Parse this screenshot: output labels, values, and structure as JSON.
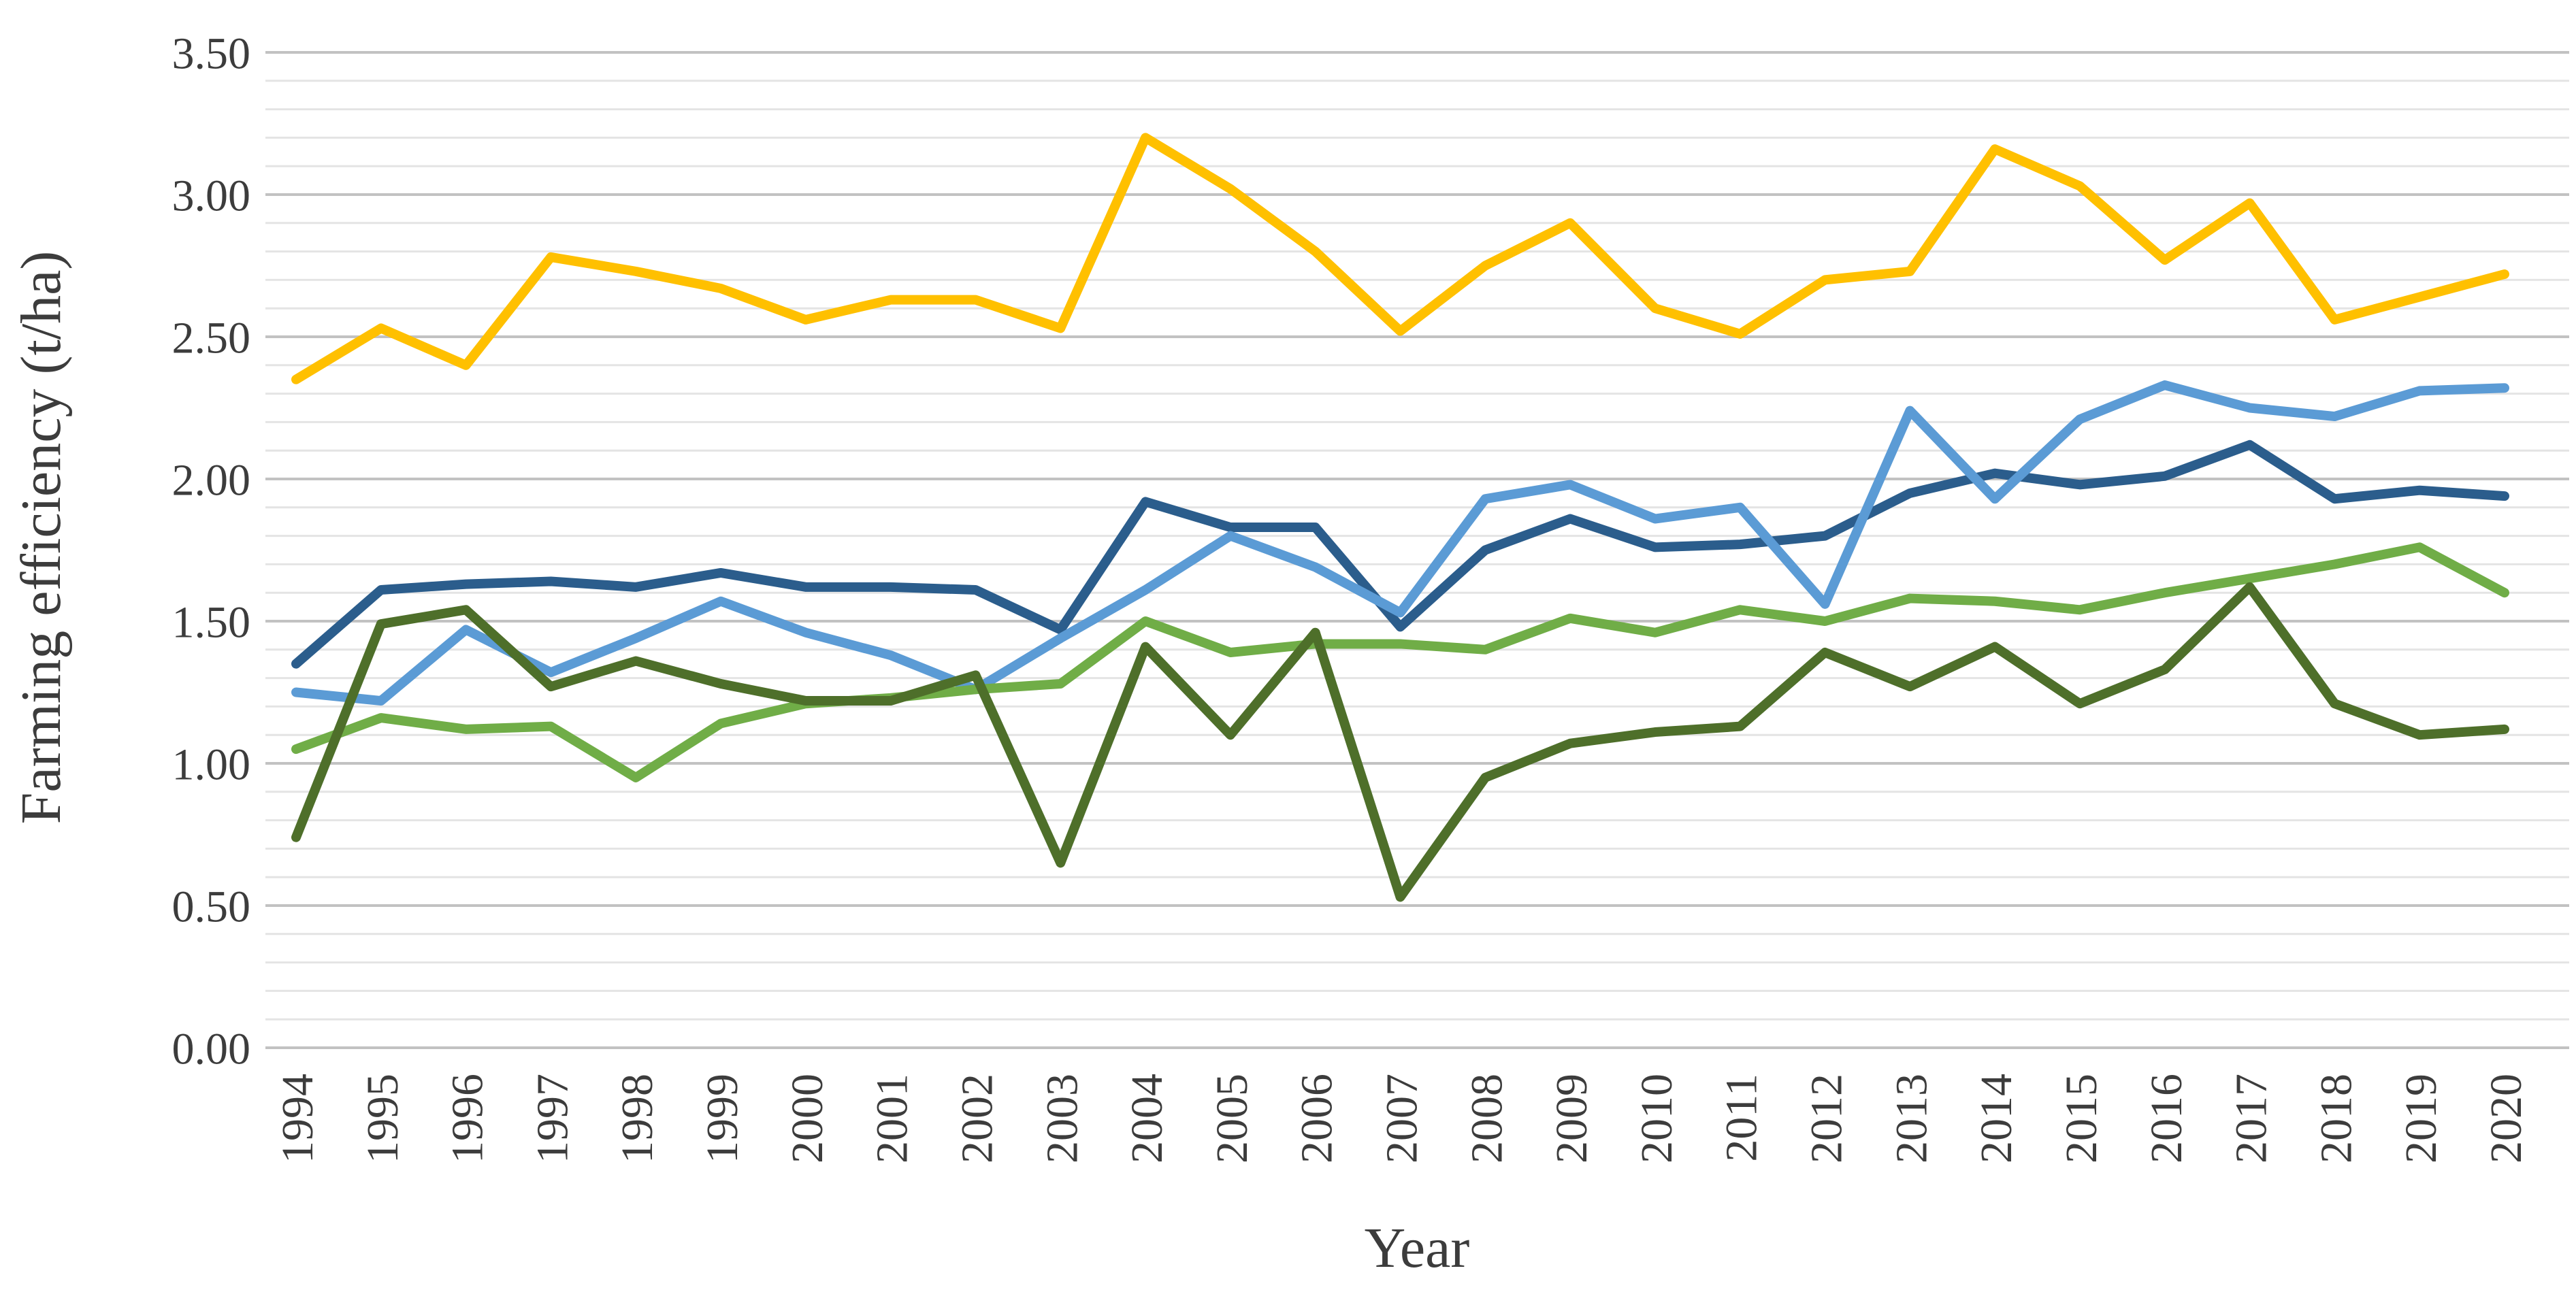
{
  "chart_data": {
    "type": "line",
    "title": "",
    "xlabel": "Year",
    "ylabel": "Farming efficiency (t/ha)",
    "x": [
      1994,
      1995,
      1996,
      1997,
      1998,
      1999,
      2000,
      2001,
      2002,
      2003,
      2004,
      2005,
      2006,
      2007,
      2008,
      2009,
      2010,
      2011,
      2012,
      2013,
      2014,
      2015,
      2016,
      2017,
      2018,
      2019,
      2020
    ],
    "x_tick_labels": [
      "1994",
      "1995",
      "1996",
      "1997",
      "1998",
      "1999",
      "2000",
      "2001",
      "2002",
      "2003",
      "2004",
      "2005",
      "2006",
      "2007",
      "2008",
      "2009",
      "2010",
      "2011",
      "2012",
      "2013",
      "2014",
      "2015",
      "2016",
      "2017",
      "2018",
      "2019",
      "2020"
    ],
    "ylim": [
      0,
      3.5
    ],
    "y_major_step": 0.5,
    "y_minor_step": 0.1,
    "y_tick_labels": [
      "0.00",
      "0.50",
      "1.00",
      "1.50",
      "2.00",
      "2.50",
      "3.00",
      "3.50"
    ],
    "grid": "horizontal, minor and major, no vertical gridlines",
    "legend": "none",
    "series": [
      {
        "name": "gold",
        "color": "#FFC000",
        "values": [
          2.35,
          2.53,
          2.4,
          2.78,
          2.73,
          2.67,
          2.56,
          2.63,
          2.63,
          2.53,
          3.2,
          3.02,
          2.8,
          2.52,
          2.75,
          2.9,
          2.6,
          2.51,
          2.7,
          2.73,
          3.16,
          3.03,
          2.77,
          2.97,
          2.56,
          2.64,
          2.72
        ]
      },
      {
        "name": "dark-blue",
        "color": "#2B5D8C",
        "values": [
          1.35,
          1.61,
          1.63,
          1.64,
          1.62,
          1.67,
          1.62,
          1.62,
          1.61,
          1.47,
          1.92,
          1.83,
          1.83,
          1.48,
          1.75,
          1.86,
          1.76,
          1.77,
          1.8,
          1.95,
          2.02,
          1.98,
          2.01,
          2.12,
          1.93,
          1.96,
          1.94
        ]
      },
      {
        "name": "light-blue",
        "color": "#5B9BD5",
        "values": [
          1.25,
          1.22,
          1.47,
          1.32,
          1.44,
          1.57,
          1.46,
          1.38,
          1.26,
          1.44,
          1.61,
          1.8,
          1.69,
          1.53,
          1.93,
          1.98,
          1.86,
          1.9,
          1.56,
          2.24,
          1.93,
          2.21,
          2.33,
          2.25,
          2.22,
          2.31,
          2.32
        ]
      },
      {
        "name": "light-green",
        "color": "#70AD47",
        "values": [
          1.05,
          1.16,
          1.12,
          1.13,
          0.95,
          1.14,
          1.21,
          1.23,
          1.26,
          1.28,
          1.5,
          1.39,
          1.42,
          1.42,
          1.4,
          1.51,
          1.46,
          1.54,
          1.5,
          1.58,
          1.57,
          1.54,
          1.6,
          1.65,
          1.7,
          1.76,
          1.6
        ]
      },
      {
        "name": "dark-green",
        "color": "#4E6F2A",
        "values": [
          0.74,
          1.49,
          1.54,
          1.27,
          1.36,
          1.28,
          1.22,
          1.22,
          1.31,
          0.65,
          1.41,
          1.1,
          1.46,
          0.53,
          0.95,
          1.07,
          1.11,
          1.13,
          1.39,
          1.27,
          1.41,
          1.21,
          1.33,
          1.62,
          1.21,
          1.1,
          1.12
        ]
      }
    ],
    "style": {
      "minor_grid_color": "#E4E4E4",
      "major_grid_color": "#C2C2C2",
      "text_color": "#3c3c3c",
      "line_width": 14
    }
  },
  "axis": {
    "x_title": "Year",
    "y_title": "Farming efficiency (t/ha)"
  }
}
